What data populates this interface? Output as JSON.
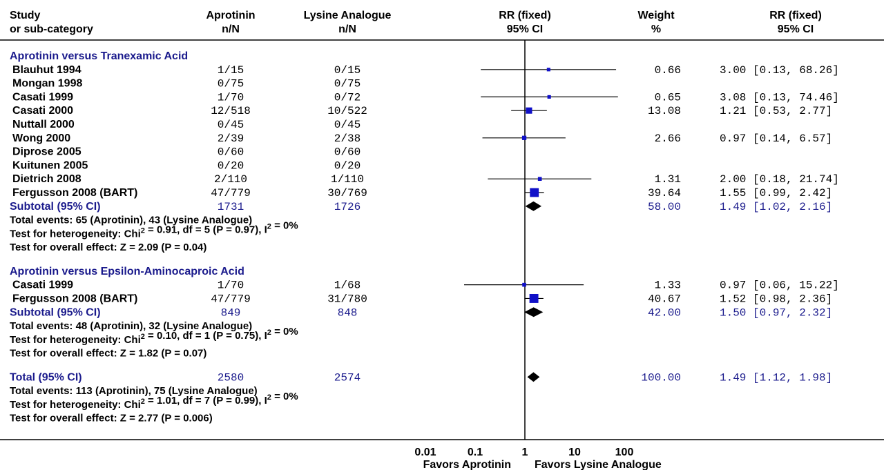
{
  "chart_data": {
    "type": "forest",
    "scale": "log",
    "xlim": [
      0.01,
      100
    ],
    "headers": {
      "study_1": "Study",
      "study_2": "or sub-category",
      "trt_1": "Aprotinin",
      "trt_2": "n/N",
      "ctl_1": "Lysine Analogue",
      "ctl_2": "n/N",
      "plot_1": "RR (fixed)",
      "plot_2": "95% CI",
      "weight_1": "Weight",
      "weight_2": "%",
      "rr_1": "RR (fixed)",
      "rr_2": "95% CI"
    },
    "groups": [
      {
        "title": "Aprotinin versus Tranexamic Acid",
        "studies": [
          {
            "name": "Blauhut 1994",
            "trt": "1/15",
            "ctl": "0/15",
            "weight": "0.66",
            "ci_text": "3.00 [0.13, 68.26]",
            "rr": 3.0,
            "lo": 0.13,
            "hi": 68.26,
            "w": 0.66
          },
          {
            "name": "Mongan 1998",
            "trt": "0/75",
            "ctl": "0/75",
            "weight": "",
            "ci_text": "",
            "rr": null,
            "lo": null,
            "hi": null,
            "w": null
          },
          {
            "name": "Casati 1999",
            "trt": "1/70",
            "ctl": "0/72",
            "weight": "0.65",
            "ci_text": "3.08 [0.13, 74.46]",
            "rr": 3.08,
            "lo": 0.13,
            "hi": 74.46,
            "w": 0.65
          },
          {
            "name": "Casati 2000",
            "trt": "12/518",
            "ctl": "10/522",
            "weight": "13.08",
            "ci_text": "1.21 [0.53, 2.77]",
            "rr": 1.21,
            "lo": 0.53,
            "hi": 2.77,
            "w": 13.08
          },
          {
            "name": "Nuttall 2000",
            "trt": "0/45",
            "ctl": "0/45",
            "weight": "",
            "ci_text": "",
            "rr": null,
            "lo": null,
            "hi": null,
            "w": null
          },
          {
            "name": "Wong 2000",
            "trt": "2/39",
            "ctl": "2/38",
            "weight": "2.66",
            "ci_text": "0.97 [0.14, 6.57]",
            "rr": 0.97,
            "lo": 0.14,
            "hi": 6.57,
            "w": 2.66
          },
          {
            "name": "Diprose 2005",
            "trt": "0/60",
            "ctl": "0/60",
            "weight": "",
            "ci_text": "",
            "rr": null,
            "lo": null,
            "hi": null,
            "w": null
          },
          {
            "name": "Kuitunen 2005",
            "trt": "0/20",
            "ctl": "0/20",
            "weight": "",
            "ci_text": "",
            "rr": null,
            "lo": null,
            "hi": null,
            "w": null
          },
          {
            "name": "Dietrich 2008",
            "trt": "2/110",
            "ctl": "1/110",
            "weight": "1.31",
            "ci_text": "2.00 [0.18, 21.74]",
            "rr": 2.0,
            "lo": 0.18,
            "hi": 21.74,
            "w": 1.31
          },
          {
            "name": "Fergusson 2008 (BART)",
            "trt": "47/779",
            "ctl": "30/769",
            "weight": "39.64",
            "ci_text": "1.55 [0.99, 2.42]",
            "rr": 1.55,
            "lo": 0.99,
            "hi": 2.42,
            "w": 39.64
          }
        ],
        "subtotal": {
          "name": "Subtotal (95% CI)",
          "trt": "1731",
          "ctl": "1726",
          "weight": "58.00",
          "ci_text": "1.49 [1.02, 2.16]",
          "rr": 1.49,
          "lo": 1.02,
          "hi": 2.16
        },
        "notes": [
          "Total events: 65 (Aprotinin), 43 (Lysine Analogue)",
          "Test for heterogeneity: Chi² = 0.91, df = 5 (P = 0.97), I² = 0%",
          "Test for overall effect: Z = 2.09 (P = 0.04)"
        ]
      },
      {
        "title": "Aprotinin versus Epsilon-Aminocaproic Acid",
        "studies": [
          {
            "name": "Casati 1999",
            "trt": "1/70",
            "ctl": "1/68",
            "weight": "1.33",
            "ci_text": "0.97 [0.06, 15.22]",
            "rr": 0.97,
            "lo": 0.06,
            "hi": 15.22,
            "w": 1.33
          },
          {
            "name": "Fergusson 2008 (BART)",
            "trt": "47/779",
            "ctl": "31/780",
            "weight": "40.67",
            "ci_text": "1.52 [0.98, 2.36]",
            "rr": 1.52,
            "lo": 0.98,
            "hi": 2.36,
            "w": 40.67
          }
        ],
        "subtotal": {
          "name": "Subtotal (95% CI)",
          "trt": "849",
          "ctl": "848",
          "weight": "42.00",
          "ci_text": "1.50 [0.97, 2.32]",
          "rr": 1.5,
          "lo": 0.97,
          "hi": 2.32
        },
        "notes": [
          "Total events: 48 (Aprotinin), 32 (Lysine Analogue)",
          "Test for heterogeneity: Chi² = 0.10, df = 1 (P = 0.75), I² = 0%",
          "Test for overall effect: Z = 1.82 (P = 0.07)"
        ]
      }
    ],
    "total": {
      "name": "Total (95% CI)",
      "trt": "2580",
      "ctl": "2574",
      "weight": "100.00",
      "ci_text": "1.49 [1.12, 1.98]",
      "rr": 1.49,
      "lo": 1.12,
      "hi": 1.98
    },
    "total_notes": [
      "Total events: 113 (Aprotinin), 75 (Lysine Analogue)",
      "Test for heterogeneity: Chi² = 1.01, df = 7 (P = 0.99), I² = 0%",
      "Test for overall effect: Z = 2.77 (P = 0.006)"
    ],
    "x_ticks": [
      {
        "value": 0.01,
        "label": "0.01"
      },
      {
        "value": 0.1,
        "label": "0.1"
      },
      {
        "value": 1,
        "label": "1"
      },
      {
        "value": 10,
        "label": "10"
      },
      {
        "value": 100,
        "label": "100"
      }
    ],
    "favors_left": "Favors Aprotinin",
    "favors_right": "Favors Lysine Analogue",
    "colors": {
      "square": "#1010c8",
      "diamond": "#000000",
      "group_text": "#1a1a8c",
      "line": "#000000"
    }
  }
}
